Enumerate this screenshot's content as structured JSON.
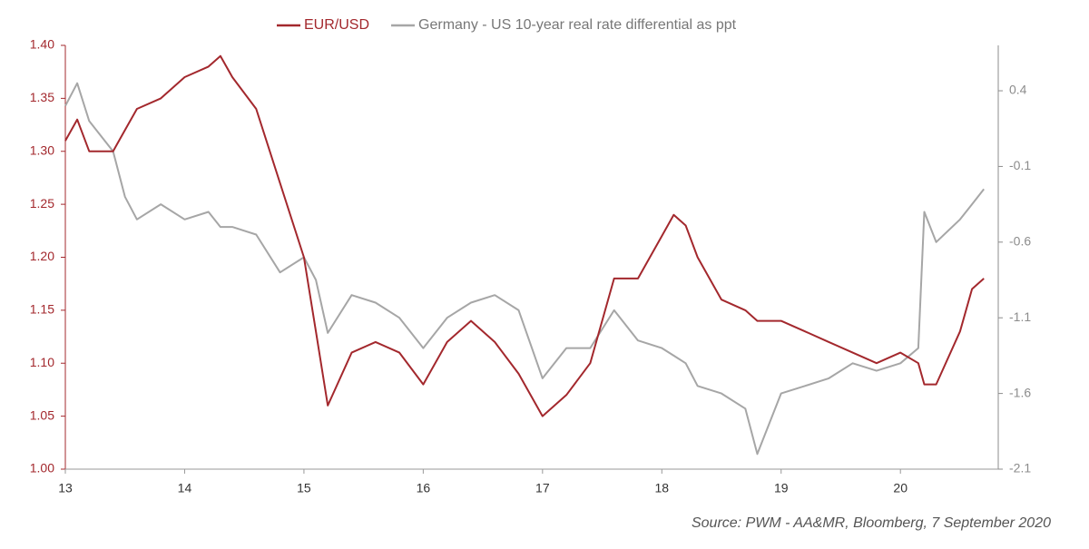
{
  "chart_data": {
    "type": "line",
    "source": "Source: PWM - AA&MR, Bloomberg, 7 September 2020",
    "x": [
      13,
      13.1,
      13.2,
      13.4,
      13.5,
      13.6,
      13.8,
      14,
      14.2,
      14.3,
      14.4,
      14.6,
      14.8,
      15,
      15.1,
      15.2,
      15.4,
      15.6,
      15.8,
      16,
      16.2,
      16.4,
      16.6,
      16.8,
      17,
      17.2,
      17.4,
      17.6,
      17.8,
      18,
      18.1,
      18.2,
      18.3,
      18.5,
      18.7,
      18.8,
      19,
      19.2,
      19.4,
      19.6,
      19.8,
      20,
      20.15,
      20.2,
      20.3,
      20.5,
      20.6,
      20.7
    ],
    "series": [
      {
        "name": "EUR/USD",
        "color": "#a3282d",
        "axis": "y",
        "values": [
          1.31,
          1.33,
          1.3,
          1.3,
          1.32,
          1.34,
          1.35,
          1.37,
          1.38,
          1.39,
          1.37,
          1.34,
          1.27,
          1.2,
          1.13,
          1.06,
          1.11,
          1.12,
          1.11,
          1.08,
          1.12,
          1.14,
          1.12,
          1.09,
          1.05,
          1.07,
          1.1,
          1.18,
          1.18,
          1.22,
          1.24,
          1.23,
          1.2,
          1.16,
          1.15,
          1.14,
          1.14,
          1.13,
          1.12,
          1.11,
          1.1,
          1.11,
          1.1,
          1.08,
          1.08,
          1.13,
          1.17,
          1.18
        ]
      },
      {
        "name": "Germany - US 10-year real rate differential as ppt",
        "color": "#a6a6a6",
        "axis": "y2",
        "values": [
          0.3,
          0.45,
          0.2,
          0.0,
          -0.3,
          -0.45,
          -0.35,
          -0.45,
          -0.4,
          -0.5,
          -0.5,
          -0.55,
          -0.8,
          -0.7,
          -0.85,
          -1.2,
          -0.95,
          -1.0,
          -1.1,
          -1.3,
          -1.1,
          -1.0,
          -0.95,
          -1.05,
          -1.5,
          -1.3,
          -1.3,
          -1.05,
          -1.25,
          -1.3,
          -1.35,
          -1.4,
          -1.55,
          -1.6,
          -1.7,
          -2.0,
          -1.6,
          -1.55,
          -1.5,
          -1.4,
          -1.45,
          -1.4,
          -1.3,
          -0.4,
          -0.6,
          -0.45,
          -0.35,
          -0.25
        ]
      }
    ],
    "xlim": [
      13,
      20.82
    ],
    "xticks": [
      13,
      14,
      15,
      16,
      17,
      18,
      19,
      20
    ],
    "ylim": [
      1.0,
      1.4
    ],
    "yticks": [
      {
        "value": 1.0,
        "label": "1.00"
      },
      {
        "value": 1.05,
        "label": "1.05"
      },
      {
        "value": 1.1,
        "label": "1.10"
      },
      {
        "value": 1.15,
        "label": "1.15"
      },
      {
        "value": 1.2,
        "label": "1.20"
      },
      {
        "value": 1.25,
        "label": "1.25"
      },
      {
        "value": 1.3,
        "label": "1.30"
      },
      {
        "value": 1.35,
        "label": "1.35"
      },
      {
        "value": 1.4,
        "label": "1.40"
      }
    ],
    "y2lim": [
      -2.1,
      0.7
    ],
    "y2ticks": [
      -2.1,
      -1.6,
      -1.1,
      -0.6,
      -0.1,
      0.4
    ],
    "y_tick_color": "#a3282d",
    "y2_tick_color": "#8c8c8c"
  }
}
